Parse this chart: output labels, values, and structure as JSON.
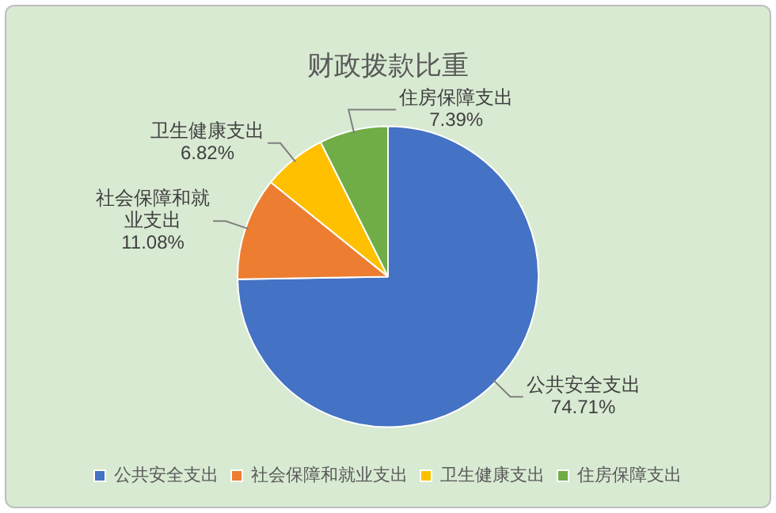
{
  "chart_data": {
    "type": "pie",
    "title": "财政拨款比重",
    "categories": [
      "公共安全支出",
      "社会保障和就业支出",
      "卫生健康支出",
      "住房保障支出"
    ],
    "values": [
      74.71,
      11.08,
      6.82,
      7.39
    ],
    "value_labels": [
      "74.71%",
      "11.08%",
      "6.82%",
      "7.39%"
    ],
    "colors": [
      "#4472c4",
      "#ed7d31",
      "#ffc000",
      "#70ad47"
    ],
    "legend": "bottom"
  }
}
